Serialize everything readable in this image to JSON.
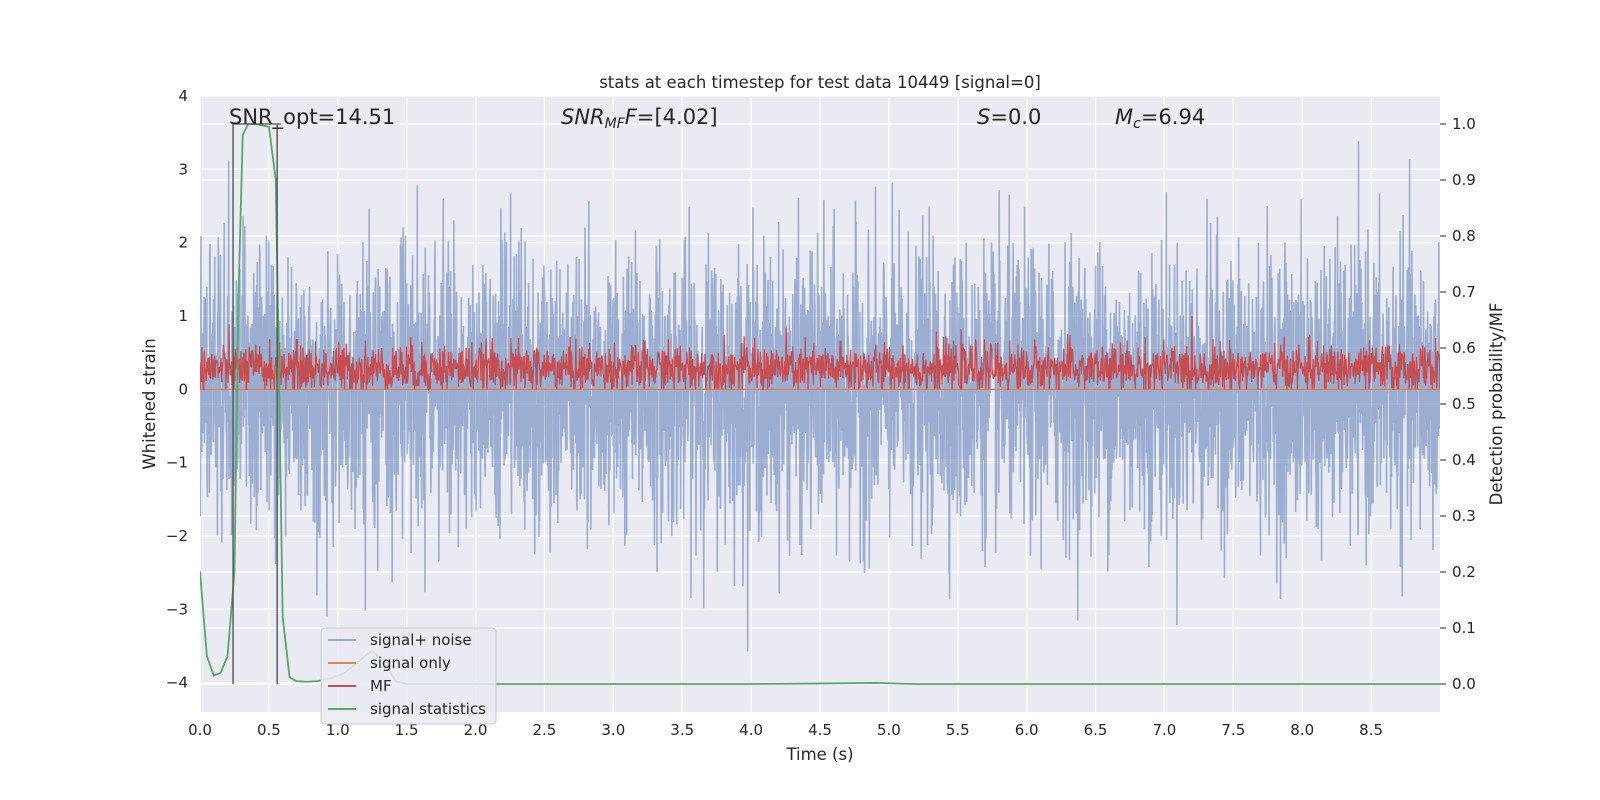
{
  "chart_data": {
    "type": "line",
    "title": "stats at each timestep for test data 10449 [signal=0]",
    "xlabel": "Time (s)",
    "ylabel_left": "Whitened strain",
    "ylabel_right": "Detection probability/MF",
    "xlim": [
      0.0,
      9.0
    ],
    "ylim_left": [
      -4.4,
      4.0
    ],
    "ylim_right": [
      -0.05,
      1.05
    ],
    "x_ticks": [
      "0.0",
      "0.5",
      "1.0",
      "1.5",
      "2.0",
      "2.5",
      "3.0",
      "3.5",
      "4.0",
      "4.5",
      "5.0",
      "5.5",
      "6.0",
      "6.5",
      "7.0",
      "7.5",
      "8.0",
      "8.5"
    ],
    "y_ticks_left": [
      "4",
      "3",
      "2",
      "1",
      "0",
      "−1",
      "−2",
      "−3",
      "−4"
    ],
    "y_ticks_right": [
      "1.0",
      "0.9",
      "0.8",
      "0.7",
      "0.6",
      "0.5",
      "0.4",
      "0.3",
      "0.2",
      "0.1",
      "0.0"
    ],
    "grid": true,
    "legend_position": "lower-left",
    "annotations": {
      "snr_opt": "SNR_opt=14.51",
      "snr_mf_main": "SNR",
      "snr_mf_sub": "MF",
      "snr_mf_value": "=[4.02]",
      "s_main": "S",
      "s_value": "=0.0",
      "mc_main": "M",
      "mc_sub": "c",
      "mc_value": "=6.94"
    },
    "vertical_markers_x": [
      0.24,
      0.56
    ],
    "series": [
      {
        "name": "signal+ noise",
        "axis": "left",
        "color": "#4c72b0",
        "alpha": 0.5,
        "description_values": {
          "mean": 0.0,
          "std": 1.0,
          "min": -4.0,
          "max": 3.6,
          "x_range": [
            0.0,
            9.0
          ]
        }
      },
      {
        "name": "signal only",
        "axis": "left",
        "color": "#dd8452",
        "values": [
          0.0
        ]
      },
      {
        "name": "MF",
        "axis": "left",
        "color": "#c44e52",
        "description_values": {
          "mean": 0.28,
          "min": 0.0,
          "max": 1.0,
          "x_range": [
            0.0,
            9.0
          ]
        }
      },
      {
        "name": "signal statistics",
        "axis": "right",
        "color": "#55a868",
        "x": [
          0.0,
          0.02,
          0.05,
          0.1,
          0.15,
          0.2,
          0.25,
          0.28,
          0.31,
          0.35,
          0.4,
          0.5,
          0.55,
          0.57,
          0.6,
          0.65,
          0.7,
          0.78,
          0.85,
          0.95,
          1.05,
          1.15,
          1.25,
          1.35,
          1.42,
          1.5,
          1.7,
          2.0,
          3.0,
          4.0,
          4.5,
          4.9,
          5.2,
          6.0,
          7.0,
          8.0,
          9.0
        ],
        "y": [
          0.2,
          0.14,
          0.05,
          0.015,
          0.02,
          0.05,
          0.2,
          0.7,
          0.98,
          1.0,
          1.0,
          0.995,
          0.9,
          0.6,
          0.12,
          0.012,
          0.005,
          0.004,
          0.005,
          0.01,
          0.02,
          0.04,
          0.06,
          0.035,
          0.005,
          0.0,
          0.0,
          0.0,
          0.0,
          0.0,
          0.001,
          0.002,
          0.0,
          0.0,
          0.0,
          0.0,
          0.0
        ]
      }
    ]
  }
}
